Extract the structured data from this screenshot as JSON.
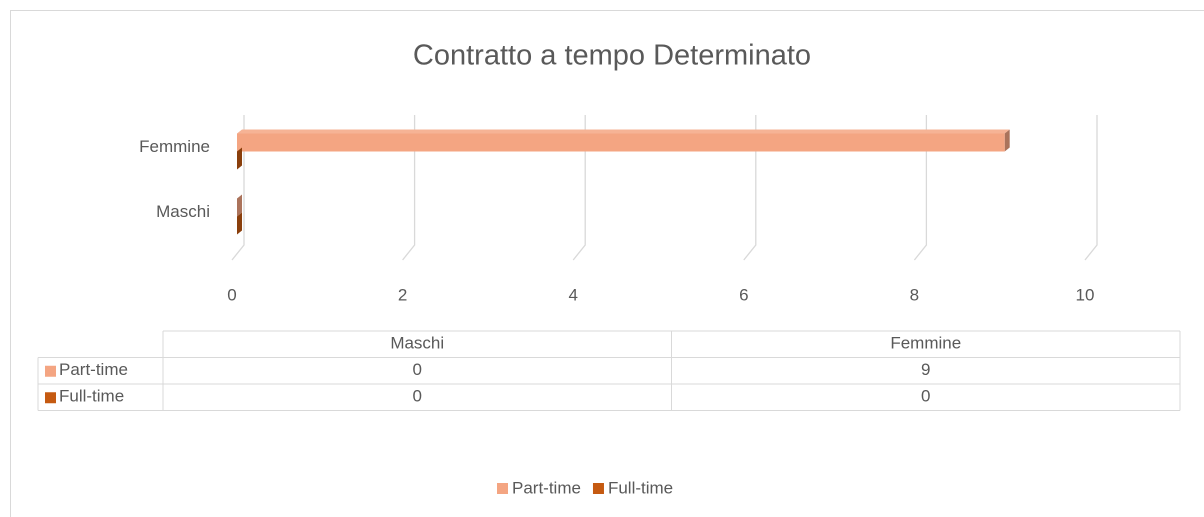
{
  "chart_data": {
    "type": "bar",
    "orientation": "horizontal",
    "three_d": true,
    "title": "Contratto a tempo Determinato",
    "categories": [
      "Maschi",
      "Femmine"
    ],
    "series": [
      {
        "name": "Part-time",
        "color": "#f4a582",
        "values": [
          0,
          9
        ]
      },
      {
        "name": "Full-time",
        "color": "#c55a11",
        "values": [
          0,
          0
        ]
      }
    ],
    "xlim": [
      0,
      10
    ],
    "xticks": [
      0,
      2,
      4,
      6,
      8,
      10
    ],
    "grid": true,
    "legend": "bottom",
    "data_table": true
  }
}
